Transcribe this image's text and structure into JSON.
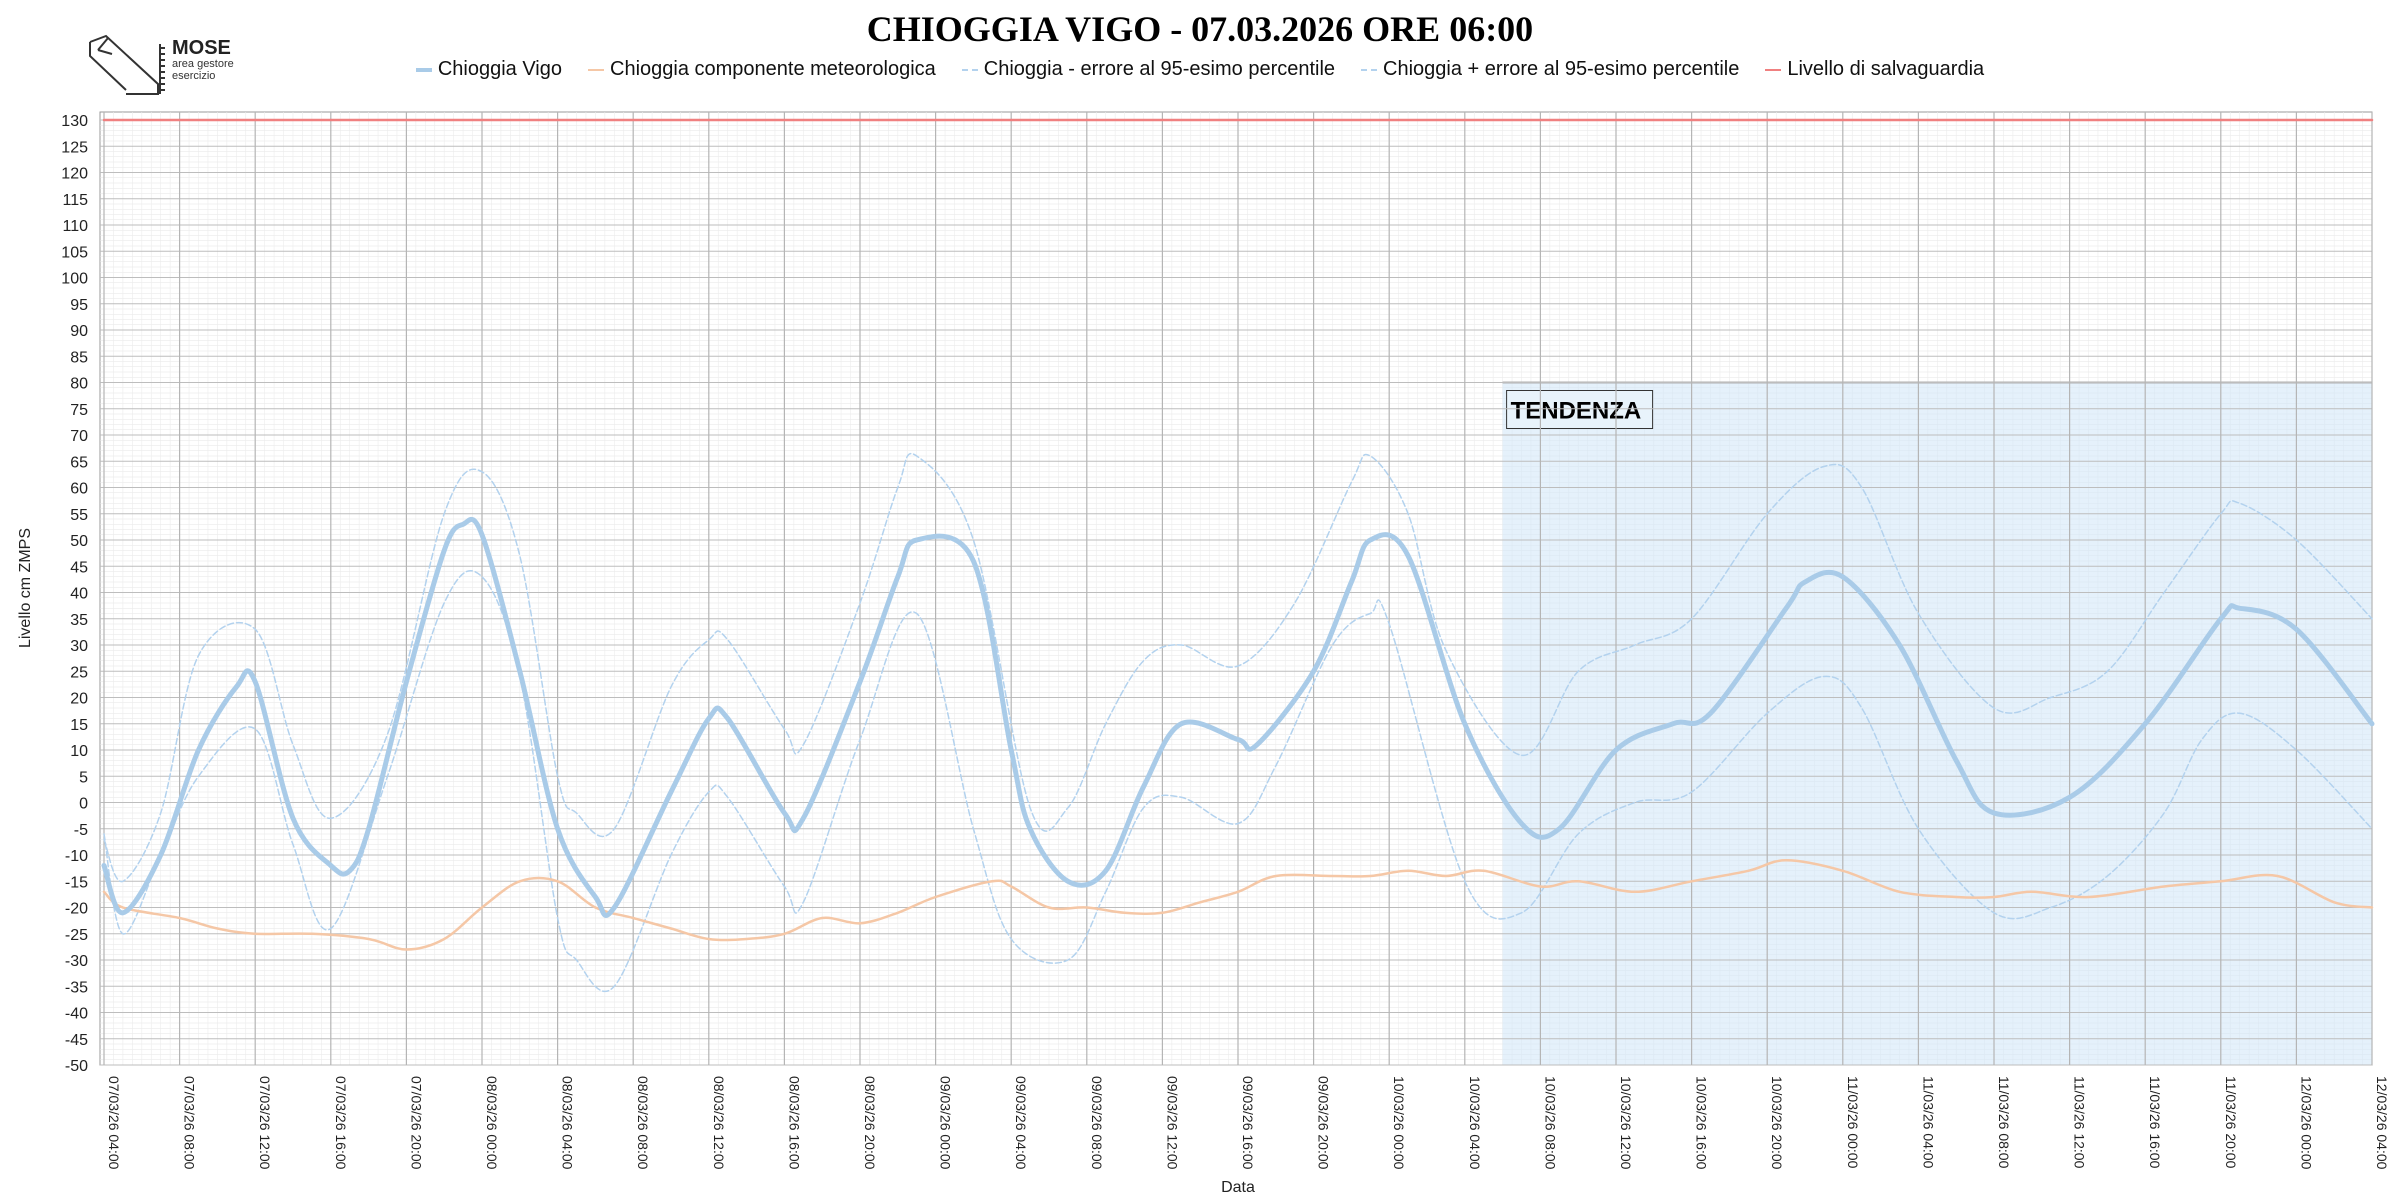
{
  "chart_data": {
    "type": "line",
    "title": "CHIOGGIA VIGO - 07.03.2026 ORE 06:00",
    "xlabel": "Data",
    "ylabel": "Livello cm ZMPS",
    "ylim": [
      -50,
      130
    ],
    "ytick_step": 5,
    "grid": true,
    "legend_position": "top",
    "x_ticks": [
      "07/03/26 04:00",
      "07/03/26 08:00",
      "07/03/26 12:00",
      "07/03/26 16:00",
      "07/03/26 20:00",
      "08/03/26 00:00",
      "08/03/26 04:00",
      "08/03/26 08:00",
      "08/03/26 12:00",
      "08/03/26 16:00",
      "08/03/26 20:00",
      "09/03/26 00:00",
      "09/03/26 04:00",
      "09/03/26 08:00",
      "09/03/26 12:00",
      "09/03/26 16:00",
      "09/03/26 20:00",
      "10/03/26 00:00",
      "10/03/26 04:00",
      "10/03/26 08:00",
      "10/03/26 12:00",
      "10/03/26 16:00",
      "10/03/26 20:00",
      "11/03/26 00:00",
      "11/03/26 04:00",
      "11/03/26 08:00",
      "11/03/26 12:00",
      "11/03/26 16:00",
      "11/03/26 20:00",
      "12/03/26 00:00",
      "12/03/26 04:00"
    ],
    "x_range": [
      "07/03/26 04:00",
      "12/03/26 04:00"
    ],
    "series": [
      {
        "name": "Chioggia Vigo",
        "color": "#a9cbe8",
        "style": "solid-thick",
        "x": [
          "07/03/26 04:00",
          "07/03/26 05:00",
          "07/03/26 07:00",
          "07/03/26 09:00",
          "07/03/26 11:00",
          "07/03/26 12:00",
          "07/03/26 14:00",
          "07/03/26 16:00",
          "07/03/26 17:00",
          "07/03/26 18:00",
          "07/03/26 20:00",
          "07/03/26 22:00",
          "07/03/26 23:00",
          "08/03/26 00:00",
          "08/03/26 02:00",
          "08/03/26 04:00",
          "08/03/26 06:00",
          "08/03/26 07:00",
          "08/03/26 10:00",
          "08/03/26 12:00",
          "08/03/26 13:00",
          "08/03/26 16:00",
          "08/03/26 17:00",
          "08/03/26 20:00",
          "08/03/26 22:00",
          "08/03/26 23:00",
          "09/03/26 02:00",
          "09/03/26 04:00",
          "09/03/26 05:00",
          "09/03/26 07:00",
          "09/03/26 09:00",
          "09/03/26 11:00",
          "09/03/26 13:00",
          "09/03/26 16:00",
          "09/03/26 17:00",
          "09/03/26 20:00",
          "09/03/26 22:00",
          "09/03/26 23:00",
          "10/03/26 01:00",
          "10/03/26 04:00",
          "10/03/26 07:00",
          "10/03/26 09:00",
          "10/03/26 12:00",
          "10/03/26 15:00",
          "10/03/26 17:00",
          "10/03/26 21:00",
          "10/03/26 22:00",
          "11/03/26 00:00",
          "11/03/26 03:00",
          "11/03/26 06:00",
          "11/03/26 08:00",
          "11/03/26 12:00",
          "11/03/26 16:00",
          "11/03/26 20:00",
          "11/03/26 21:00",
          "12/03/26 00:00",
          "12/03/26 04:00"
        ],
        "values": [
          -12,
          -21,
          -10,
          10,
          22,
          23,
          -3,
          -12,
          -13,
          -5,
          23,
          48,
          53,
          51,
          25,
          -5,
          -18,
          -20,
          2,
          16,
          16,
          -2,
          -3,
          23,
          43,
          50,
          46,
          10,
          -5,
          -15,
          -13,
          3,
          15,
          12,
          11,
          25,
          42,
          50,
          47,
          15,
          -4,
          -5,
          10,
          15,
          17,
          37,
          42,
          43,
          30,
          8,
          -2,
          1,
          15,
          35,
          37,
          33,
          15
        ]
      },
      {
        "name": "Chioggia componente meteorologica",
        "color": "#f5c7a6",
        "style": "solid",
        "x": [
          "07/03/26 04:00",
          "07/03/26 05:00",
          "07/03/26 08:00",
          "07/03/26 10:00",
          "07/03/26 12:00",
          "07/03/26 15:00",
          "07/03/26 18:00",
          "07/03/26 20:00",
          "07/03/26 22:00",
          "08/03/26 00:00",
          "08/03/26 02:00",
          "08/03/26 04:00",
          "08/03/26 06:00",
          "08/03/26 08:00",
          "08/03/26 10:00",
          "08/03/26 12:00",
          "08/03/26 14:00",
          "08/03/26 16:00",
          "08/03/26 18:00",
          "08/03/26 20:00",
          "08/03/26 22:00",
          "09/03/26 00:00",
          "09/03/26 03:00",
          "09/03/26 04:00",
          "09/03/26 06:00",
          "09/03/26 08:00",
          "09/03/26 10:00",
          "09/03/26 12:00",
          "09/03/26 14:00",
          "09/03/26 16:00",
          "09/03/26 18:00",
          "09/03/26 21:00",
          "09/03/26 23:00",
          "10/03/26 01:00",
          "10/03/26 03:00",
          "10/03/26 05:00",
          "10/03/26 08:00",
          "10/03/26 10:00",
          "10/03/26 13:00",
          "10/03/26 16:00",
          "10/03/26 19:00",
          "10/03/26 21:00",
          "11/03/26 00:00",
          "11/03/26 03:00",
          "11/03/26 06:00",
          "11/03/26 08:00",
          "11/03/26 10:00",
          "11/03/26 13:00",
          "11/03/26 17:00",
          "11/03/26 20:00",
          "11/03/26 23:00",
          "12/03/26 02:00",
          "12/03/26 04:00"
        ],
        "values": [
          -17,
          -20,
          -22,
          -24,
          -25,
          -25,
          -26,
          -28,
          -26,
          -20,
          -15,
          -15,
          -20,
          -22,
          -24,
          -26,
          -26,
          -25,
          -22,
          -23,
          -21,
          -18,
          -15,
          -16,
          -20,
          -20,
          -21,
          -21,
          -19,
          -17,
          -14,
          -14,
          -14,
          -13,
          -14,
          -13,
          -16,
          -15,
          -17,
          -15,
          -13,
          -11,
          -13,
          -17,
          -18,
          -18,
          -17,
          -18,
          -16,
          -15,
          -14,
          -19,
          -20
        ]
      },
      {
        "name": "Chioggia - errore al 95-esimo percentile",
        "color": "#b3d2ee",
        "style": "dashed",
        "x": [
          "07/03/26 04:00",
          "07/03/26 05:00",
          "07/03/26 07:00",
          "07/03/26 09:00",
          "07/03/26 12:00",
          "07/03/26 14:00",
          "07/03/26 16:00",
          "07/03/26 19:00",
          "07/03/26 22:00",
          "08/03/26 00:00",
          "08/03/26 02:00",
          "08/03/26 04:00",
          "08/03/26 05:00",
          "08/03/26 07:00",
          "08/03/26 10:00",
          "08/03/26 12:00",
          "08/03/26 13:00",
          "08/03/26 16:00",
          "08/03/26 17:00",
          "08/03/26 20:00",
          "08/03/26 23:00",
          "09/03/26 02:00",
          "09/03/26 04:00",
          "09/03/26 07:00",
          "09/03/26 09:00",
          "09/03/26 11:00",
          "09/03/26 13:00",
          "09/03/26 16:00",
          "09/03/26 18:00",
          "09/03/26 21:00",
          "09/03/26 23:00",
          "10/03/26 00:00",
          "10/03/26 04:00",
          "10/03/26 07:00",
          "10/03/26 10:00",
          "10/03/26 13:00",
          "10/03/26 16:00",
          "10/03/26 20:00",
          "10/03/26 23:00",
          "11/03/26 01:00",
          "11/03/26 04:00",
          "11/03/26 08:00",
          "11/03/26 11:00",
          "11/03/26 14:00",
          "11/03/26 17:00",
          "11/03/26 19:00",
          "11/03/26 21:00",
          "12/03/26 00:00",
          "12/03/26 04:00"
        ],
        "values": [
          -6,
          -25,
          -10,
          5,
          14,
          -8,
          -24,
          5,
          38,
          43,
          24,
          -22,
          -30,
          -35,
          -10,
          2,
          1,
          -16,
          -19,
          12,
          36,
          -5,
          -26,
          -30,
          -17,
          -1,
          1,
          -4,
          7,
          30,
          36,
          34,
          -15,
          -21,
          -6,
          0,
          2,
          17,
          24,
          18,
          -5,
          -21,
          -20,
          -14,
          -2,
          12,
          17,
          10,
          -5
        ]
      },
      {
        "name": "Chioggia + errore al 95-esimo percentile",
        "color": "#b3d2ee",
        "style": "dashed",
        "x": [
          "07/03/26 04:00",
          "07/03/26 05:00",
          "07/03/26 07:00",
          "07/03/26 09:00",
          "07/03/26 12:00",
          "07/03/26 14:00",
          "07/03/26 16:00",
          "07/03/26 19:00",
          "07/03/26 22:00",
          "08/03/26 00:00",
          "08/03/26 02:00",
          "08/03/26 04:00",
          "08/03/26 05:00",
          "08/03/26 07:00",
          "08/03/26 10:00",
          "08/03/26 12:00",
          "08/03/26 13:00",
          "08/03/26 16:00",
          "08/03/26 17:00",
          "08/03/26 20:00",
          "08/03/26 22:00",
          "08/03/26 23:00",
          "09/03/26 02:00",
          "09/03/26 05:00",
          "09/03/26 07:00",
          "09/03/26 09:00",
          "09/03/26 11:00",
          "09/03/26 13:00",
          "09/03/26 16:00",
          "09/03/26 19:00",
          "09/03/26 22:00",
          "09/03/26 23:00",
          "10/03/26 01:00",
          "10/03/26 03:00",
          "10/03/26 07:00",
          "10/03/26 10:00",
          "10/03/26 13:00",
          "10/03/26 16:00",
          "10/03/26 20:00",
          "10/03/26 23:00",
          "11/03/26 01:00",
          "11/03/26 04:00",
          "11/03/26 08:00",
          "11/03/26 11:00",
          "11/03/26 14:00",
          "11/03/26 17:00",
          "11/03/26 20:00",
          "11/03/26 21:00",
          "12/03/26 00:00",
          "12/03/26 04:00"
        ],
        "values": [
          -7,
          -15,
          -2,
          28,
          33,
          11,
          -3,
          13,
          55,
          63,
          47,
          5,
          -2,
          -5,
          22,
          31,
          31,
          14,
          11,
          38,
          60,
          66,
          50,
          -1,
          -1,
          15,
          27,
          30,
          26,
          38,
          61,
          66,
          55,
          29,
          9,
          25,
          30,
          35,
          55,
          64,
          60,
          36,
          18,
          20,
          25,
          40,
          55,
          57,
          50,
          35
        ]
      },
      {
        "name": "Livello di salvaguardia",
        "color": "#f08080",
        "style": "solid",
        "x": [
          "07/03/26 04:00",
          "12/03/26 04:00"
        ],
        "values": [
          130,
          130
        ]
      }
    ],
    "annotations": [
      {
        "text": "TENDENZA",
        "x_start": "10/03/26 06:00",
        "x_end": "12/03/26 04:00",
        "y_range": [
          -50,
          80
        ]
      }
    ]
  },
  "logo": {
    "name": "MOSE",
    "line1": "area gestore",
    "line2": "esercizio"
  }
}
